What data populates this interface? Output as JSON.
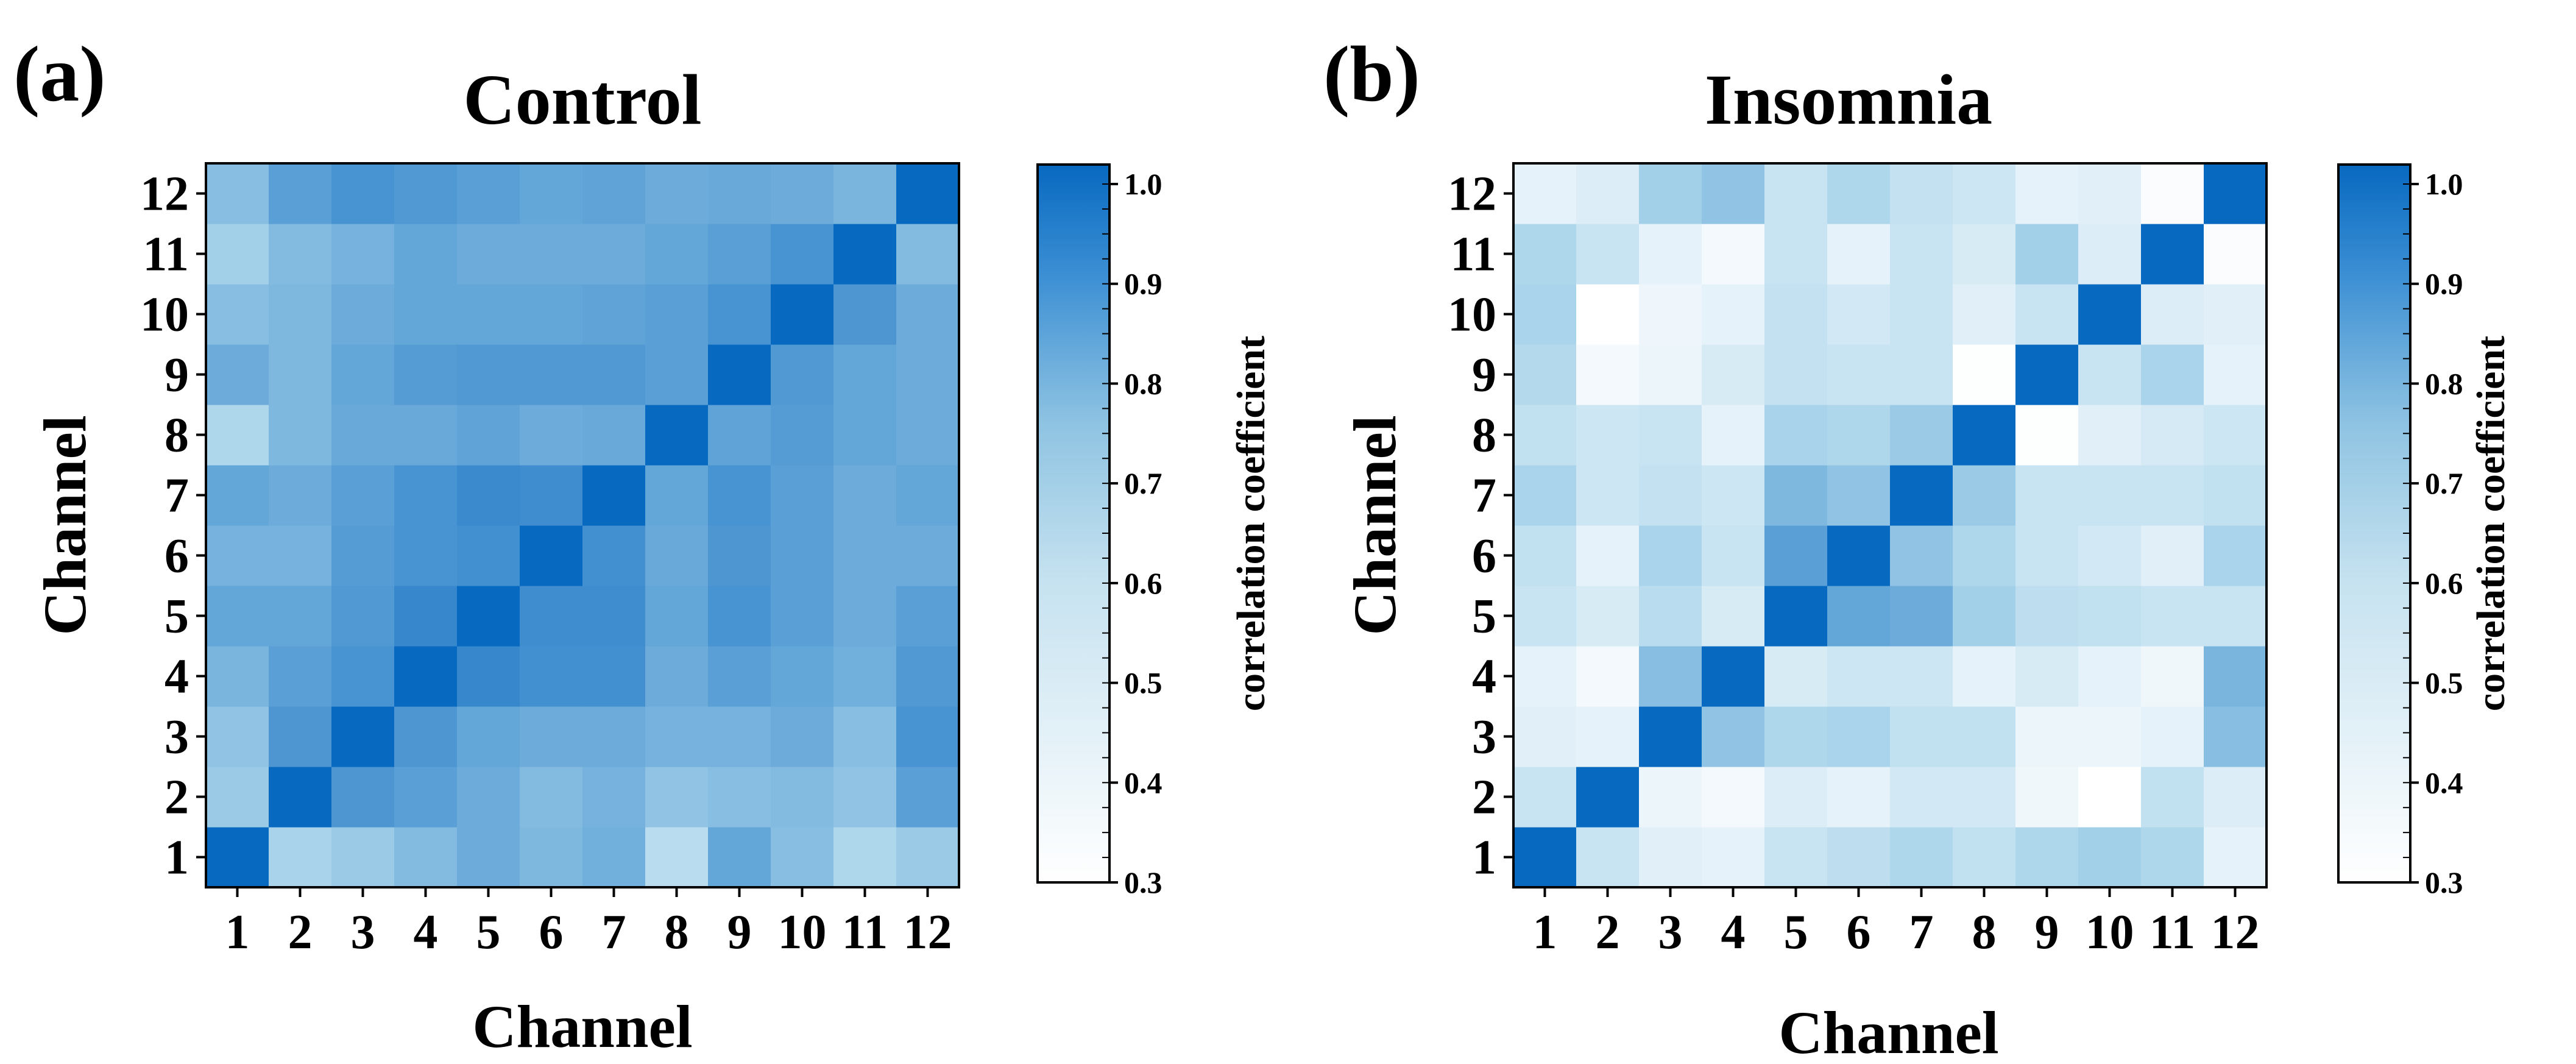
{
  "figure": {
    "panels": [
      "(a)",
      "(b)"
    ]
  },
  "chart_data": [
    {
      "type": "heatmap",
      "title": "Control",
      "xlabel": "Channel",
      "ylabel": "Channel",
      "categories": [
        "1",
        "2",
        "3",
        "4",
        "5",
        "6",
        "7",
        "8",
        "9",
        "10",
        "11",
        "12"
      ],
      "row_order": "bottom-to-top",
      "matrix": [
        [
          1.0,
          0.65,
          0.68,
          0.73,
          0.78,
          0.74,
          0.77,
          0.58,
          0.8,
          0.72,
          0.62,
          0.68
        ],
        [
          0.68,
          1.0,
          0.85,
          0.82,
          0.78,
          0.73,
          0.76,
          0.7,
          0.72,
          0.73,
          0.7,
          0.82
        ],
        [
          0.7,
          0.85,
          1.0,
          0.85,
          0.8,
          0.78,
          0.78,
          0.76,
          0.76,
          0.78,
          0.72,
          0.86
        ],
        [
          0.75,
          0.82,
          0.86,
          1.0,
          0.9,
          0.87,
          0.87,
          0.78,
          0.82,
          0.8,
          0.77,
          0.84
        ],
        [
          0.8,
          0.8,
          0.84,
          0.9,
          1.0,
          0.88,
          0.88,
          0.8,
          0.86,
          0.82,
          0.78,
          0.82
        ],
        [
          0.76,
          0.76,
          0.83,
          0.86,
          0.87,
          1.0,
          0.87,
          0.79,
          0.85,
          0.82,
          0.78,
          0.78
        ],
        [
          0.8,
          0.78,
          0.82,
          0.86,
          0.89,
          0.88,
          1.0,
          0.8,
          0.86,
          0.82,
          0.78,
          0.8
        ],
        [
          0.62,
          0.74,
          0.79,
          0.79,
          0.81,
          0.78,
          0.79,
          1.0,
          0.81,
          0.83,
          0.8,
          0.78
        ],
        [
          0.78,
          0.74,
          0.8,
          0.83,
          0.84,
          0.84,
          0.84,
          0.82,
          1.0,
          0.84,
          0.8,
          0.78
        ],
        [
          0.72,
          0.74,
          0.78,
          0.8,
          0.8,
          0.8,
          0.81,
          0.82,
          0.86,
          1.0,
          0.85,
          0.78
        ],
        [
          0.66,
          0.73,
          0.76,
          0.8,
          0.78,
          0.78,
          0.78,
          0.8,
          0.82,
          0.86,
          1.0,
          0.73
        ],
        [
          0.72,
          0.82,
          0.86,
          0.84,
          0.82,
          0.8,
          0.81,
          0.78,
          0.79,
          0.78,
          0.75,
          1.0
        ]
      ],
      "colorbar": {
        "label": "correlation coefficient",
        "range": [
          0.3,
          1.0
        ],
        "ticks": [
          "0.3",
          "0.4",
          "0.5",
          "0.6",
          "0.7",
          "0.8",
          "0.9",
          "1.0"
        ]
      }
    },
    {
      "type": "heatmap",
      "title": "Insomnia",
      "xlabel": "Channel",
      "ylabel": "Channel",
      "categories": [
        "1",
        "2",
        "3",
        "4",
        "5",
        "6",
        "7",
        "8",
        "9",
        "10",
        "11",
        "12"
      ],
      "row_order": "bottom-to-top",
      "matrix": [
        [
          1.0,
          0.52,
          0.42,
          0.4,
          0.52,
          0.56,
          0.62,
          0.55,
          0.62,
          0.66,
          0.62,
          0.4
        ],
        [
          0.52,
          1.0,
          0.38,
          0.35,
          0.44,
          0.4,
          0.48,
          0.48,
          0.36,
          0.3,
          0.55,
          0.44
        ],
        [
          0.42,
          0.4,
          1.0,
          0.7,
          0.62,
          0.64,
          0.55,
          0.55,
          0.38,
          0.38,
          0.4,
          0.72
        ],
        [
          0.4,
          0.35,
          0.72,
          1.0,
          0.46,
          0.5,
          0.5,
          0.4,
          0.46,
          0.4,
          0.36,
          0.75
        ],
        [
          0.52,
          0.46,
          0.58,
          0.46,
          1.0,
          0.8,
          0.78,
          0.66,
          0.56,
          0.55,
          0.52,
          0.52
        ],
        [
          0.55,
          0.4,
          0.64,
          0.52,
          0.82,
          1.0,
          0.7,
          0.62,
          0.52,
          0.48,
          0.42,
          0.64
        ],
        [
          0.64,
          0.5,
          0.54,
          0.5,
          0.74,
          0.7,
          1.0,
          0.68,
          0.52,
          0.52,
          0.52,
          0.55
        ],
        [
          0.55,
          0.5,
          0.52,
          0.4,
          0.65,
          0.62,
          0.68,
          1.0,
          0.31,
          0.42,
          0.47,
          0.5
        ],
        [
          0.6,
          0.35,
          0.38,
          0.46,
          0.54,
          0.52,
          0.52,
          0.31,
          1.0,
          0.52,
          0.64,
          0.4
        ],
        [
          0.64,
          0.3,
          0.37,
          0.4,
          0.54,
          0.48,
          0.52,
          0.42,
          0.52,
          1.0,
          0.44,
          0.42
        ],
        [
          0.62,
          0.52,
          0.4,
          0.35,
          0.52,
          0.4,
          0.52,
          0.46,
          0.66,
          0.44,
          1.0,
          0.32
        ],
        [
          0.4,
          0.44,
          0.66,
          0.7,
          0.52,
          0.62,
          0.54,
          0.5,
          0.4,
          0.42,
          0.32,
          1.0
        ]
      ],
      "colorbar": {
        "label": "correlation coefficient",
        "range": [
          0.3,
          1.0
        ],
        "ticks": [
          "0.3",
          "0.4",
          "0.5",
          "0.6",
          "0.7",
          "0.8",
          "0.9",
          "1.0"
        ]
      }
    }
  ],
  "colormap": {
    "low": "#ffffff",
    "mid": "#a8d3ea",
    "high": "#0869c0"
  }
}
